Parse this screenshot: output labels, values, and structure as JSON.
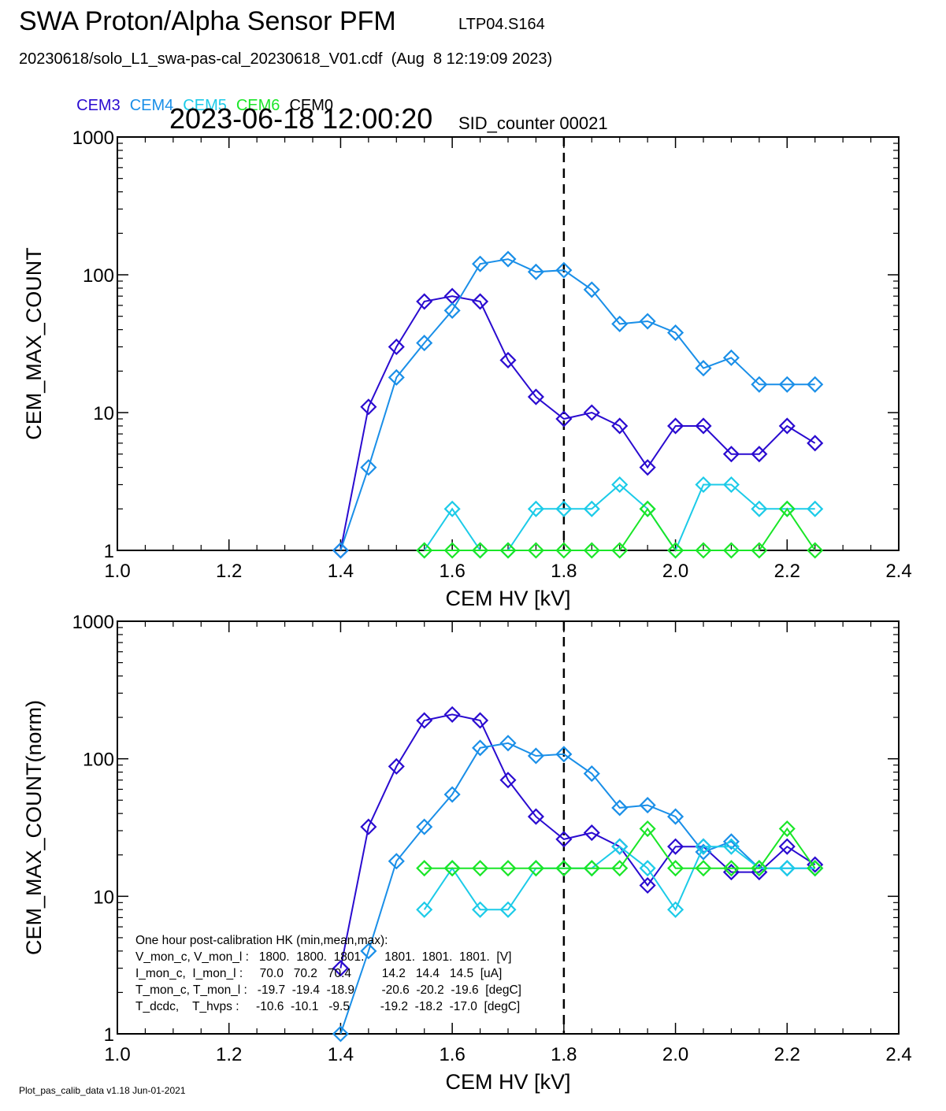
{
  "header": {
    "title": "SWA Proton/Alpha Sensor PFM",
    "subtitle_id": "LTP04.S164",
    "file_line": "20230618/solo_L1_swa-pas-cal_20230618_V01.cdf  (Aug  8 12:19:09 2023)",
    "timestamp": "2023-06-18 12:00:20",
    "sid_counter": "SID_counter 00021"
  },
  "legend": [
    {
      "label": "CEM3",
      "color": "#2a0bd0"
    },
    {
      "label": "CEM4",
      "color": "#1a8fe8"
    },
    {
      "label": "CEM5",
      "color": "#1ccbe8"
    },
    {
      "label": "CEM6",
      "color": "#1ae628"
    },
    {
      "label": "CEM0",
      "color": "#000000"
    }
  ],
  "footer": "Plot_pas_calib_data v1.18 Jun-01-2021",
  "hk_text": [
    "One hour post-calibration HK (min,mean,max):",
    "V_mon_c, V_mon_l :   1800.  1800.  1801.      1801.  1801.  1801.  [V]",
    "I_mon_c,  I_mon_l :     70.0   70.2   70.4         14.2   14.4   14.5  [uA]",
    "T_mon_c, T_mon_l :   -19.7  -19.4  -18.9        -20.6  -20.2  -19.6  [degC]",
    "T_dcdc,    T_hvps :     -10.6  -10.1   -9.5         -19.2  -18.2  -17.0  [degC]"
  ],
  "chart_data": [
    {
      "type": "line",
      "xlabel": "CEM HV [kV]",
      "ylabel": "CEM_MAX_COUNT",
      "xlim": [
        1.0,
        2.4
      ],
      "ylim": [
        1,
        1000
      ],
      "yscale": "log",
      "x_ticks": [
        "1.0",
        "1.2",
        "1.4",
        "1.6",
        "1.8",
        "2.0",
        "2.2",
        "2.4"
      ],
      "y_ticks": [
        "1",
        "10",
        "100",
        "1000"
      ],
      "vline": 1.8,
      "series": [
        {
          "name": "CEM3",
          "color": "#2a0bd0",
          "x": [
            1.4,
            1.45,
            1.5,
            1.55,
            1.6,
            1.65,
            1.7,
            1.75,
            1.8,
            1.85,
            1.9,
            1.95,
            2.0,
            2.05,
            2.1,
            2.15,
            2.2,
            2.25
          ],
          "y": [
            1,
            11,
            30,
            64,
            70,
            64,
            24,
            13,
            9,
            10,
            8,
            4,
            8,
            8,
            5,
            5,
            8,
            6
          ]
        },
        {
          "name": "CEM4",
          "color": "#1a8fe8",
          "x": [
            1.4,
            1.45,
            1.5,
            1.55,
            1.6,
            1.65,
            1.7,
            1.75,
            1.8,
            1.85,
            1.9,
            1.95,
            2.0,
            2.05,
            2.1,
            2.15,
            2.2,
            2.25
          ],
          "y": [
            1,
            4,
            18,
            32,
            55,
            120,
            130,
            105,
            108,
            78,
            44,
            46,
            38,
            21,
            25,
            16,
            16,
            16
          ]
        },
        {
          "name": "CEM5",
          "color": "#1ccbe8",
          "x": [
            1.55,
            1.6,
            1.65,
            1.7,
            1.75,
            1.8,
            1.85,
            1.9,
            1.95,
            2.0,
            2.05,
            2.1,
            2.15,
            2.2,
            2.25
          ],
          "y": [
            1,
            2,
            1,
            1,
            2,
            2,
            2,
            3,
            2,
            1,
            3,
            3,
            2,
            2,
            2
          ]
        },
        {
          "name": "CEM6",
          "color": "#1ae628",
          "x": [
            1.55,
            1.6,
            1.65,
            1.7,
            1.75,
            1.8,
            1.85,
            1.9,
            1.95,
            2.0,
            2.05,
            2.1,
            2.15,
            2.2,
            2.25
          ],
          "y": [
            1,
            1,
            1,
            1,
            1,
            1,
            1,
            1,
            2,
            1,
            1,
            1,
            1,
            2,
            1
          ]
        }
      ]
    },
    {
      "type": "line",
      "xlabel": "CEM HV [kV]",
      "ylabel": "CEM_MAX_COUNT(norm)",
      "xlim": [
        1.0,
        2.4
      ],
      "ylim": [
        1,
        1000
      ],
      "yscale": "log",
      "x_ticks": [
        "1.0",
        "1.2",
        "1.4",
        "1.6",
        "1.8",
        "2.0",
        "2.2",
        "2.4"
      ],
      "y_ticks": [
        "1",
        "10",
        "100",
        "1000"
      ],
      "vline": 1.8,
      "series": [
        {
          "name": "CEM3",
          "color": "#2a0bd0",
          "x": [
            1.4,
            1.45,
            1.5,
            1.55,
            1.6,
            1.65,
            1.7,
            1.75,
            1.8,
            1.85,
            1.9,
            1.95,
            2.0,
            2.05,
            2.1,
            2.15,
            2.2,
            2.25
          ],
          "y": [
            3,
            32,
            88,
            190,
            210,
            190,
            70,
            38,
            26,
            29,
            23,
            12,
            23,
            23,
            15,
            15,
            23,
            17
          ]
        },
        {
          "name": "CEM4",
          "color": "#1a8fe8",
          "x": [
            1.4,
            1.45,
            1.5,
            1.55,
            1.6,
            1.65,
            1.7,
            1.75,
            1.8,
            1.85,
            1.9,
            1.95,
            2.0,
            2.05,
            2.1,
            2.15,
            2.2,
            2.25
          ],
          "y": [
            1,
            4,
            18,
            32,
            55,
            120,
            130,
            105,
            108,
            78,
            44,
            46,
            38,
            21,
            25,
            16,
            16,
            16
          ]
        },
        {
          "name": "CEM5",
          "color": "#1ccbe8",
          "x": [
            1.55,
            1.6,
            1.65,
            1.7,
            1.75,
            1.8,
            1.85,
            1.9,
            1.95,
            2.0,
            2.05,
            2.1,
            2.15,
            2.2,
            2.25
          ],
          "y": [
            8,
            16,
            8,
            8,
            16,
            16,
            16,
            23,
            16,
            8,
            23,
            23,
            16,
            16,
            16
          ]
        },
        {
          "name": "CEM6",
          "color": "#1ae628",
          "x": [
            1.55,
            1.6,
            1.65,
            1.7,
            1.75,
            1.8,
            1.85,
            1.9,
            1.95,
            2.0,
            2.05,
            2.1,
            2.15,
            2.2,
            2.25
          ],
          "y": [
            16,
            16,
            16,
            16,
            16,
            16,
            16,
            16,
            31,
            16,
            16,
            16,
            16,
            31,
            16
          ]
        }
      ]
    }
  ]
}
